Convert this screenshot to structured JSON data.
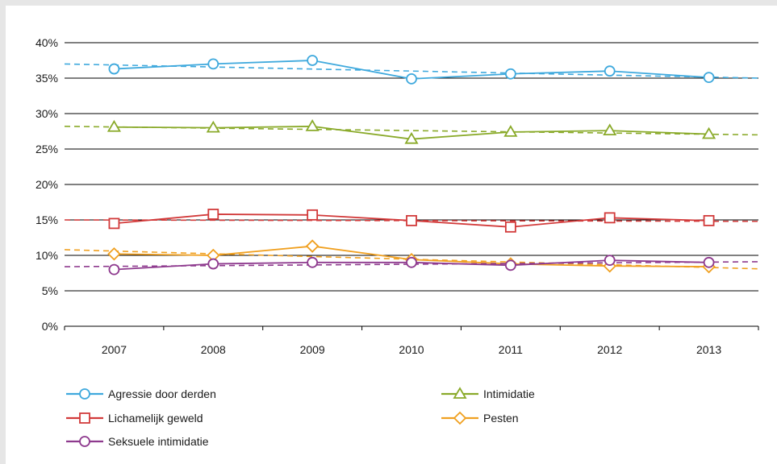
{
  "chart_data": {
    "type": "line",
    "title": "",
    "xlabel": "",
    "ylabel": "",
    "categories": [
      "2007",
      "2008",
      "2009",
      "2010",
      "2011",
      "2012",
      "2013"
    ],
    "y_ticks": [
      "0%",
      "5%",
      "10%",
      "15%",
      "20%",
      "25%",
      "30%",
      "35%",
      "40%"
    ],
    "ylim": [
      0,
      40
    ],
    "grid": true,
    "legend_position": "bottom",
    "trendlines": true,
    "series": [
      {
        "name": "Agressie door derden",
        "color": "#3fa9dd",
        "marker": "circle",
        "values": [
          36.3,
          37.0,
          37.5,
          34.9,
          35.6,
          36.0,
          35.1
        ],
        "trend": [
          37.0,
          35.0
        ]
      },
      {
        "name": "Intimidatie",
        "color": "#8aaa2a",
        "marker": "triangle",
        "values": [
          28.1,
          28.0,
          28.2,
          26.4,
          27.4,
          27.6,
          27.1
        ],
        "trend": [
          28.2,
          27.0
        ]
      },
      {
        "name": "Lichamelijk geweld",
        "color": "#d23a3a",
        "marker": "square",
        "values": [
          14.5,
          15.8,
          15.7,
          14.9,
          14.0,
          15.3,
          14.9
        ],
        "trend": [
          15.0,
          14.8
        ]
      },
      {
        "name": "Pesten",
        "color": "#f0a020",
        "marker": "diamond",
        "values": [
          10.2,
          10.0,
          11.3,
          9.4,
          8.8,
          8.5,
          8.4
        ],
        "trend": [
          10.8,
          8.1
        ]
      },
      {
        "name": "Seksuele intimidatie",
        "color": "#8e3a8e",
        "marker": "circle",
        "values": [
          8.0,
          8.8,
          9.0,
          9.0,
          8.6,
          9.3,
          9.0
        ],
        "trend": [
          8.4,
          9.1
        ]
      }
    ]
  }
}
